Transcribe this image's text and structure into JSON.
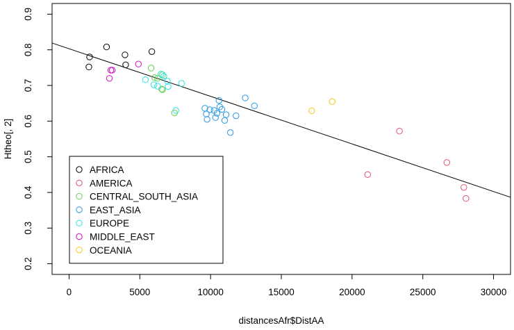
{
  "chart_data": {
    "type": "scatter",
    "title": "",
    "xlabel": "distancesAfr$DistAA",
    "ylabel": "Htheo[, 2]",
    "xlim": [
      -1200,
      31200
    ],
    "ylim": [
      0.17,
      0.93
    ],
    "xticks": [
      0,
      5000,
      10000,
      15000,
      20000,
      25000,
      30000
    ],
    "yticks": [
      0.2,
      0.3,
      0.4,
      0.5,
      0.6,
      0.7,
      0.8,
      0.9
    ],
    "grid": false,
    "legend_position": "bottom-left",
    "regression_line": {
      "intercept": 0.803,
      "slope": -1.335e-05
    },
    "series": [
      {
        "name": "AFRICA",
        "color": "#000000",
        "points": [
          [
            1450,
            0.78
          ],
          [
            1400,
            0.752
          ],
          [
            2650,
            0.808
          ],
          [
            3950,
            0.786
          ],
          [
            4000,
            0.758
          ],
          [
            5850,
            0.795
          ]
        ]
      },
      {
        "name": "AMERICA",
        "color": "#DF536B",
        "points": [
          [
            21100,
            0.45
          ],
          [
            23350,
            0.572
          ],
          [
            26700,
            0.484
          ],
          [
            27900,
            0.414
          ],
          [
            28050,
            0.383
          ]
        ]
      },
      {
        "name": "CENTRAL_SOUTH_ASIA",
        "color": "#61D04F",
        "points": [
          [
            5800,
            0.749
          ],
          [
            6050,
            0.722
          ],
          [
            6250,
            0.72
          ],
          [
            6600,
            0.73
          ],
          [
            6550,
            0.69
          ],
          [
            6600,
            0.688
          ],
          [
            7450,
            0.623
          ]
        ]
      },
      {
        "name": "EAST_ASIA",
        "color": "#2297E6",
        "points": [
          [
            9600,
            0.636
          ],
          [
            9700,
            0.62
          ],
          [
            9750,
            0.605
          ],
          [
            9950,
            0.632
          ],
          [
            10250,
            0.63
          ],
          [
            10350,
            0.61
          ],
          [
            10450,
            0.622
          ],
          [
            10600,
            0.658
          ],
          [
            10650,
            0.64
          ],
          [
            10800,
            0.633
          ],
          [
            11000,
            0.602
          ],
          [
            11100,
            0.618
          ],
          [
            11400,
            0.568
          ],
          [
            11800,
            0.615
          ],
          [
            12450,
            0.665
          ],
          [
            13100,
            0.643
          ]
        ]
      },
      {
        "name": "EUROPE",
        "color": "#28E2E5",
        "points": [
          [
            5400,
            0.716
          ],
          [
            6000,
            0.702
          ],
          [
            6250,
            0.698
          ],
          [
            6500,
            0.732
          ],
          [
            6700,
            0.726
          ],
          [
            6950,
            0.712
          ],
          [
            7000,
            0.697
          ],
          [
            7550,
            0.63
          ],
          [
            7950,
            0.706
          ]
        ]
      },
      {
        "name": "MIDDLE_EAST",
        "color": "#CD0BBC",
        "points": [
          [
            2850,
            0.72
          ],
          [
            2950,
            0.743
          ],
          [
            3050,
            0.743
          ],
          [
            4900,
            0.76
          ]
        ]
      },
      {
        "name": "OCEANIA",
        "color": "#F5C710",
        "points": [
          [
            17150,
            0.629
          ],
          [
            18600,
            0.655
          ]
        ]
      }
    ]
  }
}
